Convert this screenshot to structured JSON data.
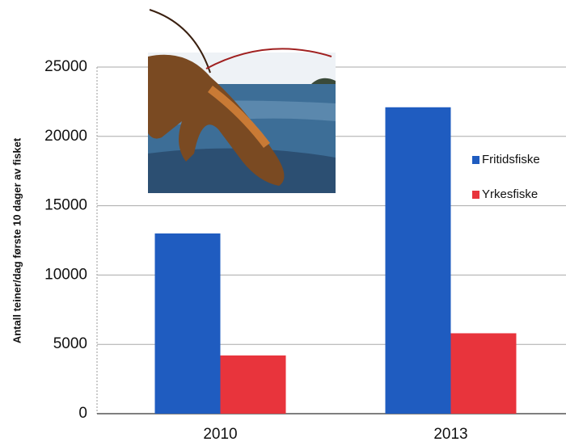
{
  "chart_data": {
    "type": "bar",
    "y_label": "Antall teiner/dag første 10 dager av fisket",
    "categories": [
      "2010",
      "2013"
    ],
    "series": [
      {
        "name": "Fritidsfiske",
        "color": "#1f5cc0",
        "values": [
          13000,
          22100
        ]
      },
      {
        "name": "Yrkesfiske",
        "color": "#e8343c",
        "values": [
          4200,
          5800
        ]
      }
    ],
    "ylim": [
      0,
      25000
    ],
    "yticks": [
      0,
      5000,
      10000,
      15000,
      20000,
      25000
    ],
    "grid": true,
    "legend": "right"
  }
}
